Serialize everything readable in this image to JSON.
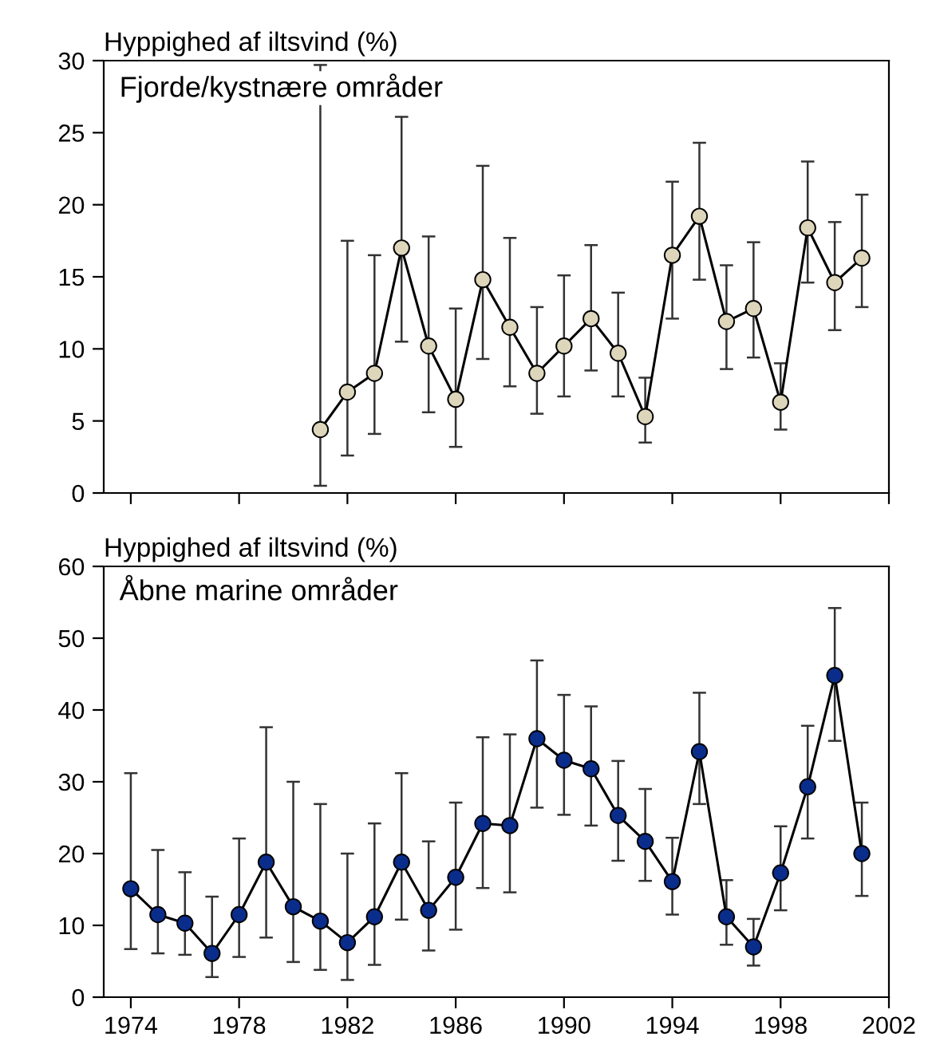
{
  "chart_data": [
    {
      "type": "line",
      "ylabel": "Hyppighed af iltsvind (%)",
      "annotations": [
        "Fjorde/kystnære områder"
      ],
      "x": [
        1981,
        1982,
        1983,
        1984,
        1985,
        1986,
        1987,
        1988,
        1989,
        1990,
        1991,
        1992,
        1993,
        1994,
        1995,
        1996,
        1997,
        1998,
        1999,
        2000,
        2001
      ],
      "series": [
        {
          "color": "#ddd6bb",
          "values": [
            4.4,
            7.0,
            8.3,
            17.0,
            10.2,
            6.5,
            14.8,
            11.5,
            8.3,
            10.2,
            12.1,
            9.7,
            5.3,
            16.5,
            19.2,
            11.9,
            12.8,
            6.3,
            18.4,
            14.6,
            16.3
          ],
          "errors": [
            [
              0.5,
              29.7
            ],
            [
              2.6,
              17.5
            ],
            [
              4.1,
              16.5
            ],
            [
              10.5,
              26.1
            ],
            [
              5.6,
              17.8
            ],
            [
              3.2,
              12.8
            ],
            [
              9.3,
              22.7
            ],
            [
              7.4,
              17.7
            ],
            [
              5.5,
              12.9
            ],
            [
              6.7,
              15.1
            ],
            [
              8.5,
              17.2
            ],
            [
              6.7,
              13.9
            ],
            [
              3.5,
              8.0
            ],
            [
              12.1,
              21.6
            ],
            [
              14.8,
              24.3
            ],
            [
              8.6,
              15.8
            ],
            [
              9.4,
              17.4
            ],
            [
              4.4,
              9.0
            ],
            [
              14.6,
              23.0
            ],
            [
              11.3,
              18.8
            ],
            [
              12.9,
              20.7
            ]
          ]
        }
      ],
      "xlim": [
        1973,
        2002
      ],
      "xticks": [
        1974,
        1978,
        1982,
        1986,
        1990,
        1994,
        1998,
        2002
      ],
      "ylim": [
        0,
        30
      ],
      "yticks": [
        0,
        5,
        10,
        15,
        20,
        25,
        30
      ],
      "tick_labels": "y",
      "marker": "circle",
      "grid": false,
      "legend": false
    },
    {
      "type": "line",
      "ylabel": "Hyppighed af iltsvind (%)",
      "annotations": [
        "Åbne marine områder"
      ],
      "x": [
        1974,
        1975,
        1976,
        1977,
        1978,
        1979,
        1980,
        1981,
        1982,
        1983,
        1984,
        1985,
        1986,
        1987,
        1988,
        1989,
        1990,
        1991,
        1992,
        1993,
        1994,
        1995,
        1996,
        1997,
        1998,
        1999,
        2000,
        2001
      ],
      "series": [
        {
          "color": "#0a2d8c",
          "values": [
            15.1,
            11.5,
            10.3,
            6.1,
            11.5,
            18.8,
            12.6,
            10.6,
            7.6,
            11.2,
            18.8,
            12.1,
            16.7,
            24.2,
            23.9,
            36.0,
            33.0,
            31.8,
            25.3,
            21.7,
            16.1,
            34.2,
            11.2,
            7.0,
            17.3,
            29.3,
            44.8,
            20.0
          ],
          "errors": [
            [
              6.7,
              31.2
            ],
            [
              6.1,
              20.5
            ],
            [
              5.9,
              17.4
            ],
            [
              2.8,
              14.0
            ],
            [
              5.6,
              22.1
            ],
            [
              8.3,
              37.6
            ],
            [
              4.9,
              30.0
            ],
            [
              3.8,
              26.9
            ],
            [
              2.4,
              20.0
            ],
            [
              4.5,
              24.2
            ],
            [
              10.8,
              31.2
            ],
            [
              6.5,
              21.7
            ],
            [
              9.4,
              27.1
            ],
            [
              15.2,
              36.2
            ],
            [
              14.6,
              36.6
            ],
            [
              26.4,
              46.9
            ],
            [
              25.4,
              42.1
            ],
            [
              23.9,
              40.5
            ],
            [
              19.0,
              32.9
            ],
            [
              16.2,
              29.0
            ],
            [
              11.5,
              22.2
            ],
            [
              26.9,
              42.4
            ],
            [
              7.3,
              16.3
            ],
            [
              4.4,
              10.9
            ],
            [
              12.1,
              23.8
            ],
            [
              22.1,
              37.8
            ],
            [
              35.7,
              54.2
            ],
            [
              14.1,
              27.1
            ]
          ]
        }
      ],
      "xlim": [
        1973,
        2002
      ],
      "xticks": [
        1974,
        1978,
        1982,
        1986,
        1990,
        1994,
        1998,
        2002
      ],
      "ylim": [
        0,
        60
      ],
      "yticks": [
        0,
        10,
        20,
        30,
        40,
        50,
        60
      ],
      "marker": "circle",
      "grid": false,
      "legend": false
    }
  ]
}
